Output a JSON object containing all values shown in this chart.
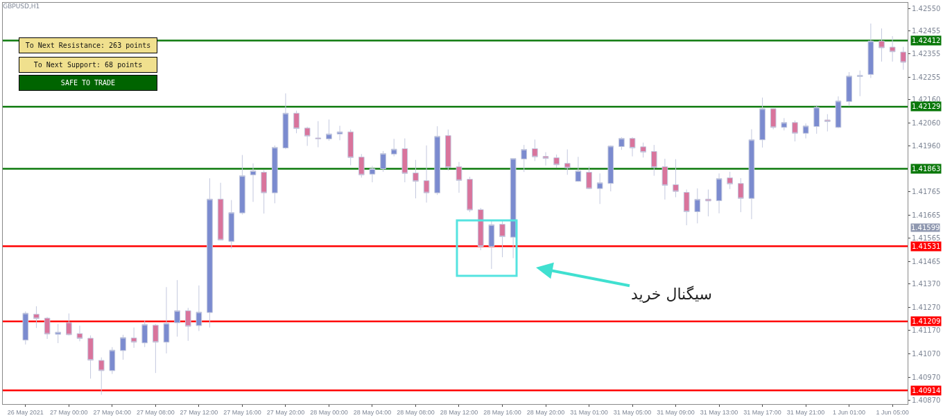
{
  "chart_data": {
    "type": "candlestick",
    "title": "GBPUSD,H1",
    "categories": [
      "26 May 2021",
      null,
      null,
      null,
      "27 May 00:00",
      null,
      null,
      null,
      "27 May 04:00",
      null,
      null,
      null,
      "27 May 08:00",
      null,
      null,
      null,
      "27 May 12:00",
      null,
      null,
      null,
      "27 May 16:00",
      null,
      null,
      null,
      "27 May 20:00",
      null,
      null,
      null,
      "28 May 00:00",
      null,
      null,
      null,
      "28 May 04:00",
      null,
      null,
      null,
      "28 May 08:00",
      null,
      null,
      null,
      "28 May 12:00",
      null,
      null,
      null,
      "28 May 16:00",
      null,
      null,
      null,
      "28 May 20:00",
      null,
      null,
      null,
      "31 May 01:00",
      null,
      null,
      null,
      "31 May 05:00",
      null,
      null,
      null,
      "31 May 09:00",
      null,
      null,
      null,
      "31 May 13:00",
      null,
      null,
      null,
      "31 May 17:00",
      null,
      null,
      null,
      "31 May 21:00",
      null,
      null,
      null,
      "1 Jun 01:00",
      null,
      null,
      null,
      "1 Jun 05:00",
      null
    ],
    "ohlc": [
      [
        1.41129,
        1.41252,
        1.4111,
        1.41244
      ],
      [
        1.4124,
        1.41274,
        1.41181,
        1.41221
      ],
      [
        1.41223,
        1.41228,
        1.41134,
        1.41155
      ],
      [
        1.41154,
        1.41198,
        1.41116,
        1.41163
      ],
      [
        1.41203,
        1.41243,
        1.41149,
        1.41152
      ],
      [
        1.41157,
        1.41191,
        1.41124,
        1.41136
      ],
      [
        1.41137,
        1.41149,
        1.40964,
        1.41043
      ],
      [
        1.41042,
        1.41055,
        1.40895,
        1.40998
      ],
      [
        1.40998,
        1.41099,
        1.40984,
        1.41086
      ],
      [
        1.41084,
        1.41152,
        1.41045,
        1.4114
      ],
      [
        1.41138,
        1.41183,
        1.41096,
        1.4112
      ],
      [
        1.41117,
        1.41213,
        1.41099,
        1.41196
      ],
      [
        1.41193,
        1.41198,
        1.40988,
        1.4112
      ],
      [
        1.4112,
        1.41356,
        1.41072,
        1.41201
      ],
      [
        1.41203,
        1.41386,
        1.41144,
        1.41255
      ],
      [
        1.41255,
        1.41267,
        1.41126,
        1.41188
      ],
      [
        1.41191,
        1.41363,
        1.41168,
        1.41249
      ],
      [
        1.41247,
        1.41822,
        1.41183,
        1.41733
      ],
      [
        1.41733,
        1.41803,
        1.41558,
        1.41558
      ],
      [
        1.41552,
        1.41729,
        1.41521,
        1.41675
      ],
      [
        1.41674,
        1.41922,
        1.41667,
        1.41833
      ],
      [
        1.41837,
        1.41886,
        1.41721,
        1.41854
      ],
      [
        1.41848,
        1.41857,
        1.41671,
        1.4176
      ],
      [
        1.4176,
        1.41963,
        1.41715,
        1.41955
      ],
      [
        1.41952,
        1.42186,
        1.41947,
        1.42101
      ],
      [
        1.42101,
        1.42112,
        1.42015,
        1.42035
      ],
      [
        1.42037,
        1.42043,
        1.41961,
        1.42003
      ],
      [
        1.41995,
        1.42067,
        1.41955,
        1.41991
      ],
      [
        1.41991,
        1.42074,
        1.41983,
        1.42012
      ],
      [
        1.42012,
        1.42047,
        1.41985,
        1.42021
      ],
      [
        1.42021,
        1.42031,
        1.41878,
        1.41911
      ],
      [
        1.41913,
        1.41926,
        1.41825,
        1.41837
      ],
      [
        1.4184,
        1.41875,
        1.41805,
        1.41863
      ],
      [
        1.41863,
        1.41939,
        1.4185,
        1.41928
      ],
      [
        1.41926,
        1.41991,
        1.41916,
        1.41947
      ],
      [
        1.41949,
        1.41993,
        1.41805,
        1.41843
      ],
      [
        1.41845,
        1.41901,
        1.41736,
        1.41809
      ],
      [
        1.41812,
        1.41963,
        1.41718,
        1.4176
      ],
      [
        1.4176,
        1.42045,
        1.41751,
        1.42002
      ],
      [
        1.42005,
        1.42031,
        1.41855,
        1.41869
      ],
      [
        1.41872,
        1.41892,
        1.4176,
        1.41813
      ],
      [
        1.41818,
        1.41829,
        1.41677,
        1.41686
      ],
      [
        1.41688,
        1.41695,
        1.41514,
        1.4153
      ],
      [
        1.4153,
        1.4164,
        1.41434,
        1.41623
      ],
      [
        1.41625,
        1.4164,
        1.41484,
        1.41572
      ],
      [
        1.4157,
        1.41907,
        1.4148,
        1.41907
      ],
      [
        1.41905,
        1.41965,
        1.41849,
        1.41946
      ],
      [
        1.41949,
        1.41988,
        1.41896,
        1.41914
      ],
      [
        1.41916,
        1.41934,
        1.41877,
        1.41907
      ],
      [
        1.4191,
        1.41924,
        1.41867,
        1.4188
      ],
      [
        1.41886,
        1.41946,
        1.41837,
        1.41867
      ],
      [
        1.41809,
        1.41914,
        1.41807,
        1.41854
      ],
      [
        1.41848,
        1.41872,
        1.41776,
        1.41778
      ],
      [
        1.41778,
        1.41843,
        1.41712,
        1.41803
      ],
      [
        1.418,
        1.41963,
        1.41766,
        1.4196
      ],
      [
        1.41958,
        1.41998,
        1.41944,
        1.41993
      ],
      [
        1.41993,
        1.41998,
        1.41916,
        1.41952
      ],
      [
        1.41957,
        1.41975,
        1.41911,
        1.41934
      ],
      [
        1.41937,
        1.41965,
        1.41833,
        1.41869
      ],
      [
        1.41872,
        1.41906,
        1.41731,
        1.41792
      ],
      [
        1.41795,
        1.41904,
        1.41741,
        1.41766
      ],
      [
        1.41762,
        1.41774,
        1.41621,
        1.41679
      ],
      [
        1.41679,
        1.41779,
        1.41629,
        1.41732
      ],
      [
        1.41733,
        1.41774,
        1.41659,
        1.41725
      ],
      [
        1.41726,
        1.41843,
        1.41672,
        1.41821
      ],
      [
        1.41824,
        1.4185,
        1.41776,
        1.41798
      ],
      [
        1.418,
        1.41823,
        1.41677,
        1.41736
      ],
      [
        1.41736,
        1.42032,
        1.41647,
        1.41987
      ],
      [
        1.41987,
        1.42168,
        1.41954,
        1.4212
      ],
      [
        1.4212,
        1.42121,
        1.42032,
        1.4204
      ],
      [
        1.4204,
        1.4208,
        1.42027,
        1.42061
      ],
      [
        1.42061,
        1.4207,
        1.4198,
        1.42015
      ],
      [
        1.42015,
        1.42057,
        1.41993,
        1.42046
      ],
      [
        1.42044,
        1.42136,
        1.42013,
        1.42126
      ],
      [
        1.42072,
        1.42097,
        1.42023,
        1.42065
      ],
      [
        1.4204,
        1.42173,
        1.42037,
        1.42153
      ],
      [
        1.42151,
        1.42277,
        1.42131,
        1.4226
      ],
      [
        1.42258,
        1.42284,
        1.42174,
        1.42263
      ],
      [
        1.42267,
        1.42485,
        1.42252,
        1.4241
      ],
      [
        1.4241,
        1.42464,
        1.42322,
        1.42381
      ],
      [
        1.42384,
        1.42431,
        1.42322,
        1.42364
      ],
      [
        1.42363,
        1.42385,
        1.42287,
        1.42319
      ]
    ],
    "ylim": [
      1.40855,
      1.42574
    ],
    "yticks": [
      {
        "value": 1.4255,
        "label": "1.42550"
      },
      {
        "value": 1.42455,
        "label": "1.42455"
      },
      {
        "value": 1.42355,
        "label": "1.42355"
      },
      {
        "value": 1.42255,
        "label": "1.42255"
      },
      {
        "value": 1.4216,
        "label": "1.42160"
      },
      {
        "value": 1.4206,
        "label": "1.42060"
      },
      {
        "value": 1.4196,
        "label": "1.41960"
      },
      {
        "value": 1.41765,
        "label": "1.41765"
      },
      {
        "value": 1.41665,
        "label": "1.41665"
      },
      {
        "value": 1.41565,
        "label": "1.41565"
      },
      {
        "value": 1.41465,
        "label": "1.41465"
      },
      {
        "value": 1.4137,
        "label": "1.41370"
      },
      {
        "value": 1.4127,
        "label": "1.41270"
      },
      {
        "value": 1.4117,
        "label": "1.41170"
      },
      {
        "value": 1.4107,
        "label": "1.41070"
      },
      {
        "value": 1.4097,
        "label": "1.40970"
      },
      {
        "value": 1.4087,
        "label": "1.40870"
      }
    ],
    "ref_lines": [
      {
        "axis": "y",
        "value": 1.42412,
        "label": "1.42412",
        "color": "#0a780a"
      },
      {
        "axis": "y",
        "value": 1.42129,
        "label": "1.42129",
        "color": "#0a780a"
      },
      {
        "axis": "y",
        "value": 1.41863,
        "label": "1.41863",
        "color": "#0a780a"
      },
      {
        "axis": "y",
        "value": 1.41531,
        "label": "1.41531",
        "color": "#ff0000"
      },
      {
        "axis": "y",
        "value": 1.41209,
        "label": "1.41209",
        "color": "#ff0000"
      },
      {
        "axis": "y",
        "value": 1.40914,
        "label": "1.40914",
        "color": "#ff0000"
      }
    ],
    "annotations": [
      "To Next Resistance: 263 points",
      "To Next Support: 68 points",
      "SAFE TO TRADE",
      "سیگنال خرید",
      "1.41599"
    ]
  }
}
